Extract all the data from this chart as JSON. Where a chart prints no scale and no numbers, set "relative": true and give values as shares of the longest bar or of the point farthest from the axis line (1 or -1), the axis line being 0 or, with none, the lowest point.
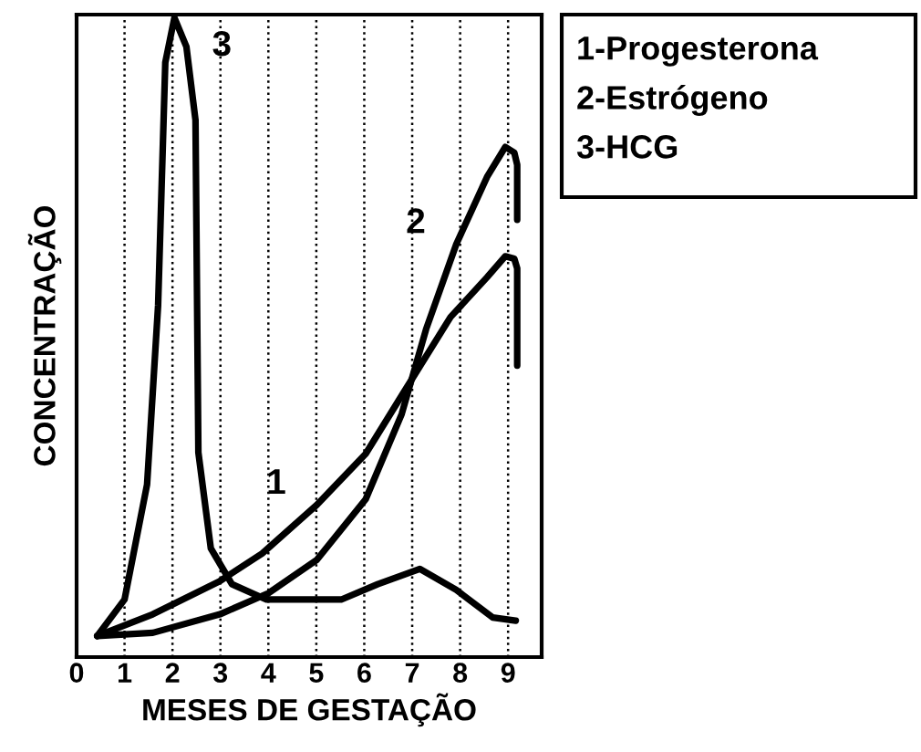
{
  "chart_data": {
    "type": "line",
    "relative": true,
    "xlabel": "MESES DE GESTAÇÃO",
    "ylabel": "CONCENTRAÇÃO",
    "xlim": [
      0,
      9.7
    ],
    "xticks": [
      0,
      1,
      2,
      3,
      4,
      5,
      6,
      7,
      8,
      9
    ],
    "grid": "x",
    "legend": false,
    "marker": "none",
    "line_style": "solid",
    "series": [
      {
        "color": "#000000",
        "x": [
          0.43,
          1.59,
          2.99,
          3.87,
          5.01,
          6.03,
          6.78,
          7.8,
          8.56,
          8.94,
          9.13,
          9.19,
          9.19
        ],
        "values": [
          0.033,
          0.067,
          0.119,
          0.162,
          0.238,
          0.318,
          0.409,
          0.532,
          0.594,
          0.627,
          0.623,
          0.608,
          0.456
        ]
      },
      {
        "color": "#000000",
        "x": [
          0.43,
          1.59,
          2.99,
          4.0,
          5.01,
          6.03,
          6.78,
          7.29,
          7.92,
          8.56,
          8.94,
          9.13,
          9.19,
          9.19
        ],
        "values": [
          0.033,
          0.038,
          0.067,
          0.1,
          0.152,
          0.247,
          0.38,
          0.513,
          0.646,
          0.751,
          0.798,
          0.789,
          0.77,
          0.684
        ]
      },
      {
        "color": "#000000",
        "x": [
          0.43,
          1.0,
          1.47,
          1.7,
          1.85,
          2.04,
          2.29,
          2.48,
          2.54,
          2.8,
          3.24,
          3.96,
          5.52,
          6.28,
          7.16,
          7.92,
          8.68,
          9.16
        ],
        "values": [
          0.033,
          0.09,
          0.27,
          0.55,
          0.93,
          1.0,
          0.955,
          0.84,
          0.32,
          0.17,
          0.114,
          0.09,
          0.09,
          0.114,
          0.138,
          0.105,
          0.062,
          0.057
        ]
      }
    ],
    "annotations": [
      {
        "text": "1",
        "x": 5.01,
        "y": 0.238
      },
      {
        "text": "2",
        "x": 7.92,
        "y": 0.646
      },
      {
        "text": "3",
        "x": 2.29,
        "y": 0.955
      },
      "1-Progesterona",
      "2-Estrógeno",
      "3-HCG"
    ]
  }
}
